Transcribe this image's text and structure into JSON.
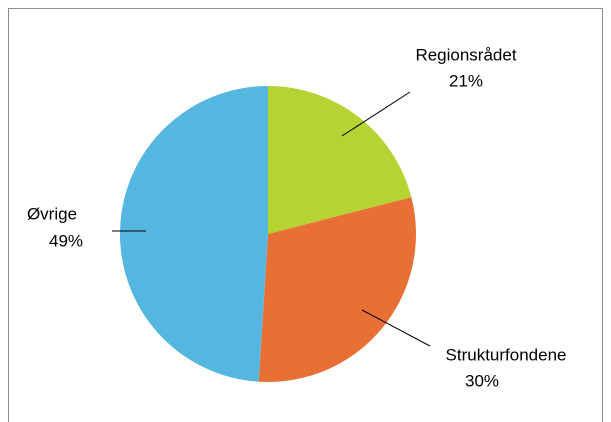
{
  "chart_data": {
    "type": "pie",
    "categories": [
      "Regionsrådet",
      "Strukturfondene",
      "Øvrige"
    ],
    "values": [
      21,
      30,
      49
    ],
    "value_labels": [
      "21%",
      "30%",
      "49%"
    ],
    "colors": [
      "#b6d334",
      "#e97034",
      "#55b7e0"
    ]
  }
}
